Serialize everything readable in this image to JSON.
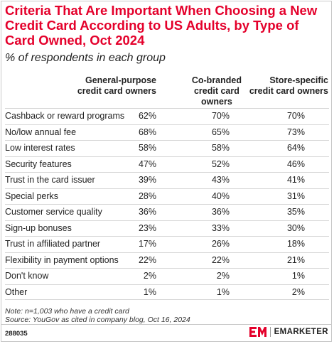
{
  "header": {
    "title": "Criteria That Are Important When Choosing a New Credit Card According to US Adults, by Type of Card Owned, Oct 2024",
    "subtitle": "% of respondents in each group"
  },
  "chart_data": {
    "type": "table",
    "columns": [
      {
        "name": "General-purpose credit card owners",
        "lines": [
          "General-purpose",
          "credit card owners"
        ]
      },
      {
        "name": "Co-branded credit card owners",
        "lines": [
          "Co-branded",
          "credit card",
          "owners"
        ]
      },
      {
        "name": "Store-specific credit card owners",
        "lines": [
          "Store-specific",
          "credit card owners"
        ]
      }
    ],
    "rows": [
      {
        "label": "Cashback or reward programs",
        "values": [
          "62%",
          "70%",
          "70%"
        ]
      },
      {
        "label": "No/low annual fee",
        "values": [
          "68%",
          "65%",
          "73%"
        ]
      },
      {
        "label": "Low interest rates",
        "values": [
          "58%",
          "58%",
          "64%"
        ]
      },
      {
        "label": "Security features",
        "values": [
          "47%",
          "52%",
          "46%"
        ]
      },
      {
        "label": "Trust in the card issuer",
        "values": [
          "39%",
          "43%",
          "41%"
        ]
      },
      {
        "label": "Special perks",
        "values": [
          "28%",
          "40%",
          "31%"
        ]
      },
      {
        "label": "Customer service quality",
        "values": [
          "36%",
          "36%",
          "35%"
        ]
      },
      {
        "label": "Sign-up bonuses",
        "values": [
          "23%",
          "33%",
          "30%"
        ]
      },
      {
        "label": "Trust in affiliated partner",
        "values": [
          "17%",
          "26%",
          "18%"
        ]
      },
      {
        "label": "Flexibility in payment options",
        "values": [
          "22%",
          "22%",
          "21%"
        ]
      },
      {
        "label": "Don't know",
        "values": [
          "2%",
          "2%",
          "1%"
        ]
      },
      {
        "label": "Other",
        "values": [
          "1%",
          "1%",
          "2%"
        ]
      }
    ]
  },
  "footer": {
    "note": "Note: n=1,003 who have a credit card",
    "source": "Source: YouGov as cited in company blog, Oct 16, 2024",
    "chart_id": "288035",
    "brand": "EMARKETER",
    "brand_icon": "em-logo-icon"
  },
  "colors": {
    "title": "#e4002b",
    "text": "#222222",
    "rule": "#d6d6d6"
  }
}
